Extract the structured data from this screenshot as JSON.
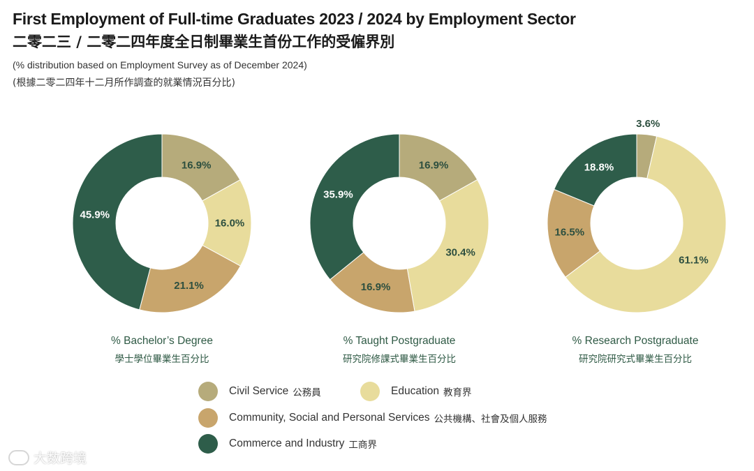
{
  "title_en": "First Employment of Full-time Graduates 2023 / 2024 by Employment Sector",
  "title_zh": "二零二三 / 二零二四年度全日制畢業生首份工作的受僱界別",
  "subtitle_en": "(% distribution based on Employment Survey as of December 2024)",
  "subtitle_zh": "(根據二零二四年十二月所作調查的就業情況百分比)",
  "colors": {
    "civil_service": "#b6ab7b",
    "education": "#e8dc9c",
    "community": "#c8a56c",
    "commerce": "#2e5d4a"
  },
  "legend": [
    {
      "key": "civil_service",
      "en": "Civil Service",
      "zh": "公務員"
    },
    {
      "key": "education",
      "en": "Education",
      "zh": "教育界"
    },
    {
      "key": "community",
      "en": "Community, Social and Personal Services",
      "zh": "公共機構、社會及個人服務"
    },
    {
      "key": "commerce",
      "en": "Commerce and Industry",
      "zh": "工商界"
    }
  ],
  "chart_data": [
    {
      "type": "pie",
      "label_en": "% Bachelor’s Degree",
      "label_zh": "學士學位畢業生百分比",
      "slices": [
        {
          "key": "civil_service",
          "value": 16.9,
          "label": "16.9%"
        },
        {
          "key": "education",
          "value": 16.0,
          "label": "16.0%"
        },
        {
          "key": "community",
          "value": 21.1,
          "label": "21.1%"
        },
        {
          "key": "commerce",
          "value": 45.9,
          "label": "45.9%"
        }
      ]
    },
    {
      "type": "pie",
      "label_en": "% Taught Postgraduate",
      "label_zh": "研究院修課式畢業生百分比",
      "slices": [
        {
          "key": "civil_service",
          "value": 16.9,
          "label": "16.9%"
        },
        {
          "key": "education",
          "value": 30.4,
          "label": "30.4%"
        },
        {
          "key": "community",
          "value": 16.9,
          "label": "16.9%"
        },
        {
          "key": "commerce",
          "value": 35.9,
          "label": "35.9%"
        }
      ]
    },
    {
      "type": "pie",
      "label_en": "% Research Postgraduate",
      "label_zh": "研究院研究式畢業生百分比",
      "slices": [
        {
          "key": "civil_service",
          "value": 3.6,
          "label": "3.6%"
        },
        {
          "key": "education",
          "value": 61.1,
          "label": "61.1%"
        },
        {
          "key": "community",
          "value": 16.5,
          "label": "16.5%"
        },
        {
          "key": "commerce",
          "value": 18.8,
          "label": "18.8%"
        }
      ]
    }
  ],
  "watermark": "大数跨境"
}
